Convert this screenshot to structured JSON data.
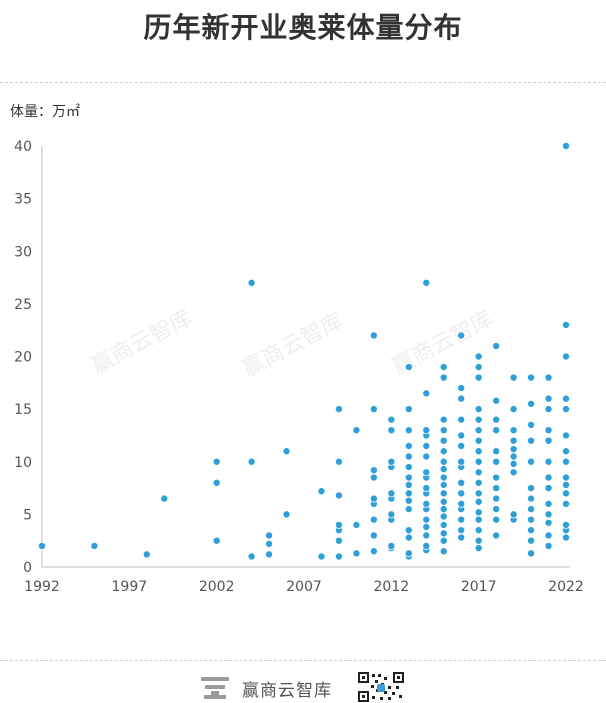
{
  "title": "历年新开业奥莱体量分布",
  "unit_label": "体量：万㎡",
  "watermark": "赢商云智库",
  "footer": {
    "brand": "赢商云智库"
  },
  "colors": {
    "point": "#2f9fd8",
    "point_stroke": "#ffffff",
    "axis": "#bdbdbd",
    "text": "#555555",
    "watermark": "#eeeeee"
  },
  "chart_data": {
    "type": "scatter",
    "title": "历年新开业奥莱体量分布",
    "ylabel": "体量：万㎡",
    "xlabel": "",
    "xlim": [
      1992,
      2022
    ],
    "ylim": [
      0,
      40
    ],
    "x_ticks": [
      1992,
      1997,
      2002,
      2007,
      2012,
      2017,
      2022
    ],
    "y_ticks": [
      0,
      5,
      10,
      15,
      20,
      25,
      30,
      35,
      40
    ],
    "grid": false,
    "series": [
      {
        "points": [
          [
            1992,
            2
          ],
          [
            1995,
            2
          ],
          [
            1998,
            1.2
          ],
          [
            1999,
            6.5
          ],
          [
            2002,
            2.5
          ],
          [
            2002,
            8
          ],
          [
            2002,
            10
          ],
          [
            2004,
            1
          ],
          [
            2004,
            10
          ],
          [
            2004,
            27
          ],
          [
            2005,
            1.2
          ],
          [
            2005,
            2.2
          ],
          [
            2005,
            3
          ],
          [
            2006,
            5
          ],
          [
            2006,
            11
          ],
          [
            2008,
            1
          ],
          [
            2008,
            7.2
          ],
          [
            2009,
            1
          ],
          [
            2009,
            2.5
          ],
          [
            2009,
            3.5
          ],
          [
            2009,
            4
          ],
          [
            2009,
            6.8
          ],
          [
            2009,
            10
          ],
          [
            2009,
            15
          ],
          [
            2010,
            1.3
          ],
          [
            2010,
            4
          ],
          [
            2010,
            13
          ],
          [
            2011,
            1.5
          ],
          [
            2011,
            3
          ],
          [
            2011,
            4.5
          ],
          [
            2011,
            6
          ],
          [
            2011,
            6.5
          ],
          [
            2011,
            8.5
          ],
          [
            2011,
            9.2
          ],
          [
            2011,
            15
          ],
          [
            2011,
            22
          ],
          [
            2012,
            1.8
          ],
          [
            2012,
            2
          ],
          [
            2012,
            4.5
          ],
          [
            2012,
            5
          ],
          [
            2012,
            6.5
          ],
          [
            2012,
            7
          ],
          [
            2012,
            9.5
          ],
          [
            2012,
            10
          ],
          [
            2012,
            13
          ],
          [
            2012,
            14
          ],
          [
            2013,
            1
          ],
          [
            2013,
            1.3
          ],
          [
            2013,
            2.8
          ],
          [
            2013,
            3.5
          ],
          [
            2013,
            5.5
          ],
          [
            2013,
            6.3
          ],
          [
            2013,
            7
          ],
          [
            2013,
            7.8
          ],
          [
            2013,
            8.5
          ],
          [
            2013,
            9.5
          ],
          [
            2013,
            10.5
          ],
          [
            2013,
            11.5
          ],
          [
            2013,
            13
          ],
          [
            2013,
            15
          ],
          [
            2013,
            19
          ],
          [
            2014,
            1.6
          ],
          [
            2014,
            2
          ],
          [
            2014,
            3
          ],
          [
            2014,
            3.8
          ],
          [
            2014,
            4.5
          ],
          [
            2014,
            5.5
          ],
          [
            2014,
            6
          ],
          [
            2014,
            7
          ],
          [
            2014,
            7.5
          ],
          [
            2014,
            8.5
          ],
          [
            2014,
            9
          ],
          [
            2014,
            10.5
          ],
          [
            2014,
            11.5
          ],
          [
            2014,
            12.5
          ],
          [
            2014,
            13
          ],
          [
            2014,
            16.5
          ],
          [
            2014,
            27
          ],
          [
            2015,
            1.5
          ],
          [
            2015,
            2.5
          ],
          [
            2015,
            3.2
          ],
          [
            2015,
            4
          ],
          [
            2015,
            4.8
          ],
          [
            2015,
            5.5
          ],
          [
            2015,
            6.2
          ],
          [
            2015,
            7
          ],
          [
            2015,
            7.8
          ],
          [
            2015,
            8.5
          ],
          [
            2015,
            9.3
          ],
          [
            2015,
            10
          ],
          [
            2015,
            11
          ],
          [
            2015,
            12
          ],
          [
            2015,
            13
          ],
          [
            2015,
            14
          ],
          [
            2015,
            18
          ],
          [
            2015,
            19
          ],
          [
            2016,
            2.8
          ],
          [
            2016,
            3.5
          ],
          [
            2016,
            4.5
          ],
          [
            2016,
            5.5
          ],
          [
            2016,
            6
          ],
          [
            2016,
            7
          ],
          [
            2016,
            8
          ],
          [
            2016,
            9.5
          ],
          [
            2016,
            10
          ],
          [
            2016,
            11.5
          ],
          [
            2016,
            12.5
          ],
          [
            2016,
            14
          ],
          [
            2016,
            16
          ],
          [
            2016,
            17
          ],
          [
            2016,
            22
          ],
          [
            2017,
            1.8
          ],
          [
            2017,
            2.5
          ],
          [
            2017,
            3.5
          ],
          [
            2017,
            4.5
          ],
          [
            2017,
            5.2
          ],
          [
            2017,
            6.2
          ],
          [
            2017,
            7
          ],
          [
            2017,
            8
          ],
          [
            2017,
            9
          ],
          [
            2017,
            10
          ],
          [
            2017,
            11
          ],
          [
            2017,
            12
          ],
          [
            2017,
            13
          ],
          [
            2017,
            14
          ],
          [
            2017,
            15
          ],
          [
            2017,
            18
          ],
          [
            2017,
            19
          ],
          [
            2017,
            20
          ],
          [
            2018,
            3
          ],
          [
            2018,
            4.5
          ],
          [
            2018,
            5.5
          ],
          [
            2018,
            6.5
          ],
          [
            2018,
            7.5
          ],
          [
            2018,
            8.5
          ],
          [
            2018,
            10
          ],
          [
            2018,
            11
          ],
          [
            2018,
            13
          ],
          [
            2018,
            14
          ],
          [
            2018,
            15.8
          ],
          [
            2018,
            21
          ],
          [
            2019,
            4.5
          ],
          [
            2019,
            5
          ],
          [
            2019,
            9
          ],
          [
            2019,
            9.8
          ],
          [
            2019,
            10.5
          ],
          [
            2019,
            11.2
          ],
          [
            2019,
            12
          ],
          [
            2019,
            13
          ],
          [
            2019,
            15
          ],
          [
            2019,
            18
          ],
          [
            2020,
            1.3
          ],
          [
            2020,
            2.5
          ],
          [
            2020,
            3.5
          ],
          [
            2020,
            4.5
          ],
          [
            2020,
            5.5
          ],
          [
            2020,
            6.5
          ],
          [
            2020,
            7.5
          ],
          [
            2020,
            10
          ],
          [
            2020,
            12
          ],
          [
            2020,
            13.5
          ],
          [
            2020,
            15.5
          ],
          [
            2020,
            18
          ],
          [
            2021,
            2
          ],
          [
            2021,
            3
          ],
          [
            2021,
            4.2
          ],
          [
            2021,
            5
          ],
          [
            2021,
            6
          ],
          [
            2021,
            7.5
          ],
          [
            2021,
            8.5
          ],
          [
            2021,
            10
          ],
          [
            2021,
            12
          ],
          [
            2021,
            13
          ],
          [
            2021,
            15
          ],
          [
            2021,
            16
          ],
          [
            2021,
            18
          ],
          [
            2022,
            2.8
          ],
          [
            2022,
            3.5
          ],
          [
            2022,
            4
          ],
          [
            2022,
            6
          ],
          [
            2022,
            7
          ],
          [
            2022,
            7.8
          ],
          [
            2022,
            8.5
          ],
          [
            2022,
            10
          ],
          [
            2022,
            11
          ],
          [
            2022,
            12.5
          ],
          [
            2022,
            15
          ],
          [
            2022,
            16
          ],
          [
            2022,
            20
          ],
          [
            2022,
            23
          ],
          [
            2022,
            40
          ]
        ]
      }
    ]
  }
}
